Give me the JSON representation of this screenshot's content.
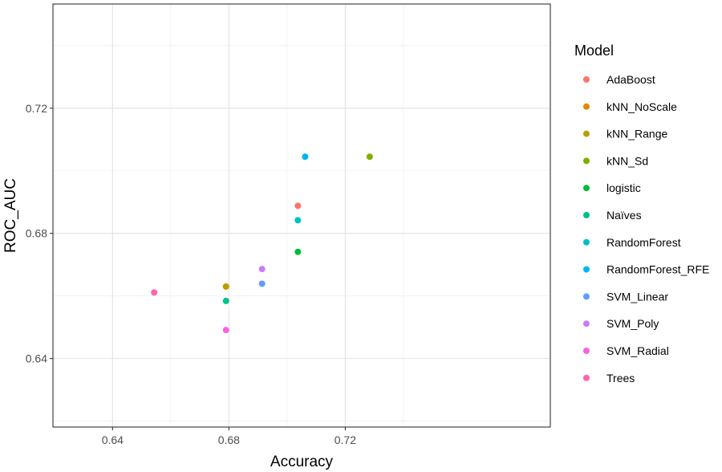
{
  "chart_data": {
    "type": "scatter",
    "xlabel": "Accuracy",
    "ylabel": "ROC_AUC",
    "xlim": [
      0.6195,
      0.7905
    ],
    "ylim": [
      0.6181,
      0.7533
    ],
    "x_ticks": [
      0.64,
      0.68,
      0.72
    ],
    "x_tick_labels": [
      "0.64",
      "0.68",
      "0.72"
    ],
    "y_ticks": [
      0.64,
      0.68,
      0.72
    ],
    "y_tick_labels": [
      "0.64",
      "0.68",
      "0.72"
    ],
    "grid": true,
    "legend": {
      "title": "Model",
      "placement": "right"
    },
    "series": [
      {
        "name": "AdaBoost",
        "color": "#F8766D",
        "points": [
          [
            0.7037,
            0.6888
          ]
        ]
      },
      {
        "name": "kNN_NoScale",
        "color": "#DE8C00",
        "points": [
          [
            0.679,
            0.663
          ]
        ]
      },
      {
        "name": "kNN_Range",
        "color": "#B79F00",
        "points": [
          [
            0.679,
            0.663
          ]
        ]
      },
      {
        "name": "kNN_Sd",
        "color": "#7CAE00",
        "points": [
          [
            0.7284,
            0.7045
          ]
        ]
      },
      {
        "name": "logistic",
        "color": "#00BA38",
        "points": [
          [
            0.7037,
            0.6741
          ]
        ]
      },
      {
        "name": "Naïves",
        "color": "#00C08B",
        "points": [
          [
            0.679,
            0.6584
          ]
        ]
      },
      {
        "name": "RandomForest",
        "color": "#00BFC4",
        "points": [
          [
            0.7037,
            0.6842
          ]
        ]
      },
      {
        "name": "RandomForest_RFE",
        "color": "#00B4F0",
        "points": [
          [
            0.7062,
            0.7045
          ]
        ]
      },
      {
        "name": "SVM_Linear",
        "color": "#619CFF",
        "points": [
          [
            0.6914,
            0.6639
          ]
        ]
      },
      {
        "name": "SVM_Poly",
        "color": "#C77CFF",
        "points": [
          [
            0.6914,
            0.6686
          ]
        ]
      },
      {
        "name": "SVM_Radial",
        "color": "#F564E3",
        "points": [
          [
            0.679,
            0.6491
          ]
        ]
      },
      {
        "name": "Trees",
        "color": "#FF64B0",
        "points": [
          [
            0.6543,
            0.6611
          ]
        ]
      }
    ]
  }
}
